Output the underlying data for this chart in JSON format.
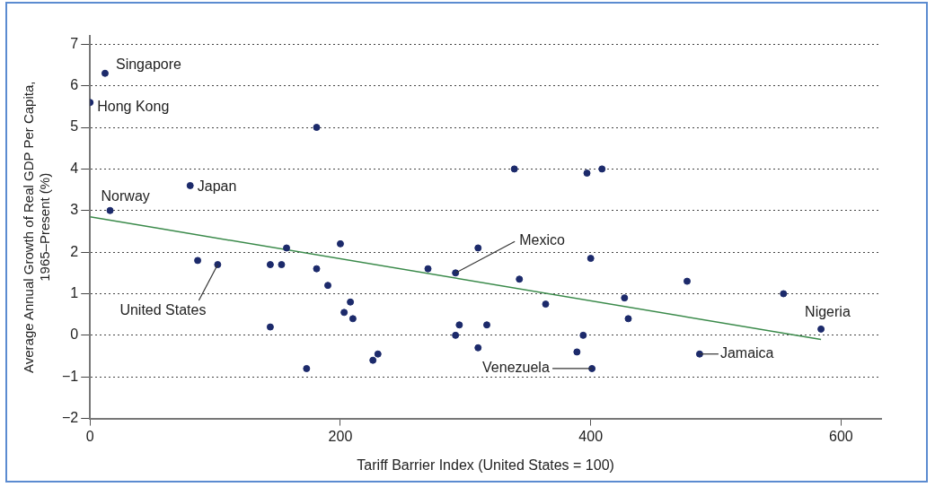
{
  "chart_data": {
    "type": "scatter",
    "xlabel": "Tariff Barrier Index (United States = 100)",
    "ylabel": "Average Annual Growth of Real GDP Per Capita,\n1965–Present (%)",
    "xlim": [
      0,
      632
    ],
    "ylim": [
      -2,
      7.2
    ],
    "xticks": [
      0,
      200,
      400,
      600
    ],
    "yticks": [
      -2,
      -1,
      0,
      1,
      2,
      3,
      4,
      5,
      6,
      7
    ],
    "grid": "y",
    "legend": false,
    "series": [
      {
        "type": "scatter",
        "marker": "circle",
        "color": "#1c2a6b",
        "x": [
          12,
          0,
          181,
          16,
          80,
          86,
          102,
          144,
          153,
          157,
          181,
          190,
          200,
          208,
          203,
          210,
          144,
          173,
          226,
          230,
          270,
          292,
          310,
          343,
          364,
          339,
          397,
          409,
          400,
          292,
          295,
          310,
          317,
          389,
          394,
          401,
          427,
          430,
          477,
          554,
          584,
          487
        ],
        "values": [
          6.3,
          5.6,
          5.0,
          3.0,
          3.6,
          1.8,
          1.7,
          1.7,
          1.7,
          2.1,
          1.6,
          1.2,
          2.2,
          0.8,
          0.55,
          0.4,
          0.2,
          -0.8,
          -0.6,
          -0.45,
          1.6,
          1.5,
          2.1,
          1.35,
          0.75,
          4.0,
          3.9,
          4.0,
          1.85,
          0.0,
          0.25,
          -0.3,
          0.25,
          -0.4,
          0.0,
          -0.8,
          0.9,
          0.4,
          1.3,
          1.0,
          0.15,
          -0.45
        ]
      },
      {
        "type": "line",
        "color": "#3a8a4a",
        "x": [
          0,
          584
        ],
        "values": [
          2.85,
          -0.1
        ]
      }
    ],
    "annotations": [
      {
        "text": "Singapore",
        "x": 12,
        "y": 6.3
      },
      {
        "text": "Hong Kong",
        "x": 0,
        "y": 5.6
      },
      {
        "text": "Norway",
        "x": 16,
        "y": 3.0
      },
      {
        "text": "Japan",
        "x": 80,
        "y": 3.6
      },
      {
        "text": "United States",
        "x": 102,
        "y": 1.7
      },
      {
        "text": "Mexico",
        "x": 292,
        "y": 1.5
      },
      {
        "text": "Venezuela",
        "x": 401,
        "y": -0.8
      },
      {
        "text": "Jamaica",
        "x": 487,
        "y": -0.45
      },
      {
        "text": "Nigeria",
        "x": 584,
        "y": 0.15
      }
    ]
  }
}
